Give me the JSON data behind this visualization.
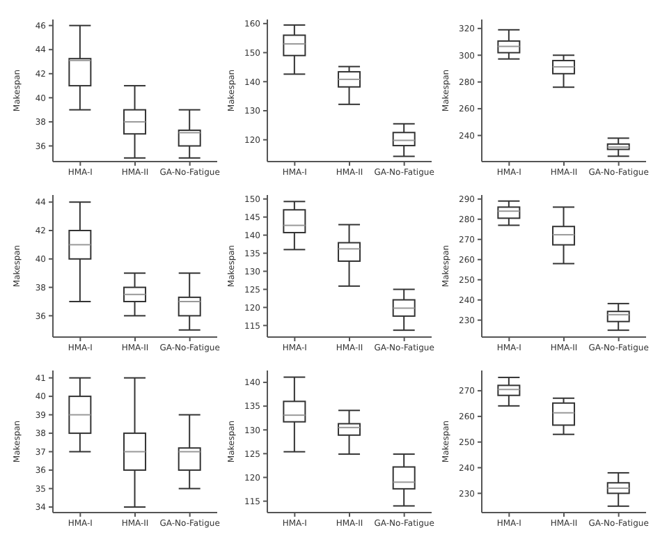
{
  "chart_data": [
    {
      "type": "box",
      "ylabel": "Makespan",
      "categories": [
        "HMA-I",
        "HMA-II",
        "GA-No-Fatigue"
      ],
      "color": "#333333",
      "ylim": [
        34.7,
        46.5
      ],
      "yticks": [
        36,
        38,
        40,
        42,
        44,
        46
      ],
      "boxes": [
        {
          "low": 39,
          "q1": 41,
          "median": 43.1,
          "q3": 43.25,
          "high": 46
        },
        {
          "low": 35,
          "q1": 37,
          "median": 38,
          "q3": 39,
          "high": 41
        },
        {
          "low": 35,
          "q1": 36,
          "median": 37.1,
          "q3": 37.3,
          "high": 39
        }
      ]
    },
    {
      "type": "box",
      "ylabel": "Makespan",
      "categories": [
        "HMA-I",
        "HMA-II",
        "GA-No-Fatigue"
      ],
      "color": "#333333",
      "ylim": [
        112.5,
        161.4
      ],
      "yticks": [
        120,
        130,
        140,
        150,
        160
      ],
      "boxes": [
        {
          "low": 142.6,
          "q1": 149,
          "median": 153,
          "q3": 156,
          "high": 159.5
        },
        {
          "low": 132.2,
          "q1": 138.2,
          "median": 140.8,
          "q3": 143.4,
          "high": 145.2
        },
        {
          "low": 114.3,
          "q1": 118,
          "median": 119.8,
          "q3": 122.5,
          "high": 125.5
        }
      ]
    },
    {
      "type": "box",
      "ylabel": "Makespan",
      "categories": [
        "HMA-I",
        "HMA-II",
        "GA-No-Fatigue"
      ],
      "color": "#333333",
      "ylim": [
        220.5,
        326.7
      ],
      "yticks": [
        240,
        260,
        280,
        300,
        320
      ],
      "boxes": [
        {
          "low": 297.2,
          "q1": 301.9,
          "median": 306.6,
          "q3": 310.6,
          "high": 319
        },
        {
          "low": 276.1,
          "q1": 286.2,
          "median": 291.3,
          "q3": 296,
          "high": 300
        },
        {
          "low": 224.5,
          "q1": 229.6,
          "median": 231.3,
          "q3": 233.6,
          "high": 238
        }
      ]
    },
    {
      "type": "box",
      "ylabel": "Makespan",
      "categories": [
        "HMA-I",
        "HMA-II",
        "GA-No-Fatigue"
      ],
      "color": "#333333",
      "ylim": [
        34.5,
        44.5
      ],
      "yticks": [
        36,
        38,
        40,
        42,
        44
      ],
      "boxes": [
        {
          "low": 37,
          "q1": 40,
          "median": 41,
          "q3": 42,
          "high": 44
        },
        {
          "low": 36,
          "q1": 37,
          "median": 37.5,
          "q3": 38,
          "high": 39
        },
        {
          "low": 35,
          "q1": 36,
          "median": 37,
          "q3": 37.3,
          "high": 39
        }
      ]
    },
    {
      "type": "box",
      "ylabel": "Makespan",
      "categories": [
        "HMA-I",
        "HMA-II",
        "GA-No-Fatigue"
      ],
      "color": "#333333",
      "ylim": [
        111.8,
        151.1
      ],
      "yticks": [
        115,
        120,
        125,
        130,
        135,
        140,
        145,
        150
      ],
      "boxes": [
        {
          "low": 136,
          "q1": 140.7,
          "median": 142.7,
          "q3": 147,
          "high": 149.3
        },
        {
          "low": 125.9,
          "q1": 132.8,
          "median": 136.2,
          "q3": 137.9,
          "high": 142.9
        },
        {
          "low": 113.7,
          "q1": 117.6,
          "median": 119.8,
          "q3": 122.1,
          "high": 125
        }
      ]
    },
    {
      "type": "box",
      "ylabel": "Makespan",
      "categories": [
        "HMA-I",
        "HMA-II",
        "GA-No-Fatigue"
      ],
      "color": "#333333",
      "ylim": [
        221.6,
        292
      ],
      "yticks": [
        230,
        240,
        250,
        260,
        270,
        280,
        290
      ],
      "boxes": [
        {
          "low": 277,
          "q1": 280.5,
          "median": 284,
          "q3": 286,
          "high": 289
        },
        {
          "low": 258,
          "q1": 267.3,
          "median": 272.3,
          "q3": 276.4,
          "high": 286
        },
        {
          "low": 225,
          "q1": 229.3,
          "median": 232.7,
          "q3": 234.3,
          "high": 238.2
        }
      ]
    },
    {
      "type": "box",
      "ylabel": "Makespan",
      "categories": [
        "HMA-I",
        "HMA-II",
        "GA-No-Fatigue"
      ],
      "color": "#333333",
      "ylim": [
        33.7,
        41.4
      ],
      "yticks": [
        34,
        35,
        36,
        37,
        38,
        39,
        40,
        41
      ],
      "boxes": [
        {
          "low": 37,
          "q1": 38,
          "median": 39,
          "q3": 40,
          "high": 41
        },
        {
          "low": 34,
          "q1": 36,
          "median": 37,
          "q3": 38,
          "high": 41
        },
        {
          "low": 35,
          "q1": 36,
          "median": 37,
          "q3": 37.2,
          "high": 39
        }
      ]
    },
    {
      "type": "box",
      "ylabel": "Makespan",
      "categories": [
        "HMA-I",
        "HMA-II",
        "GA-No-Fatigue"
      ],
      "color": "#333333",
      "ylim": [
        112.6,
        142.5
      ],
      "yticks": [
        115,
        120,
        125,
        130,
        135,
        140
      ],
      "boxes": [
        {
          "low": 125.4,
          "q1": 131.7,
          "median": 133.1,
          "q3": 136,
          "high": 141.1
        },
        {
          "low": 124.9,
          "q1": 128.9,
          "median": 130.5,
          "q3": 131.3,
          "high": 134.1
        },
        {
          "low": 114,
          "q1": 117.6,
          "median": 119,
          "q3": 122.2,
          "high": 124.9
        }
      ]
    },
    {
      "type": "box",
      "ylabel": "Makespan",
      "categories": [
        "HMA-I",
        "HMA-II",
        "GA-No-Fatigue"
      ],
      "color": "#333333",
      "ylim": [
        222.5,
        277.9
      ],
      "yticks": [
        230,
        240,
        250,
        260,
        270
      ],
      "boxes": [
        {
          "low": 264.1,
          "q1": 268.2,
          "median": 270.5,
          "q3": 272.1,
          "high": 275.2
        },
        {
          "low": 253,
          "q1": 256.6,
          "median": 261.4,
          "q3": 265.2,
          "high": 267.1
        },
        {
          "low": 225,
          "q1": 230,
          "median": 232,
          "q3": 234.1,
          "high": 238
        }
      ]
    }
  ]
}
